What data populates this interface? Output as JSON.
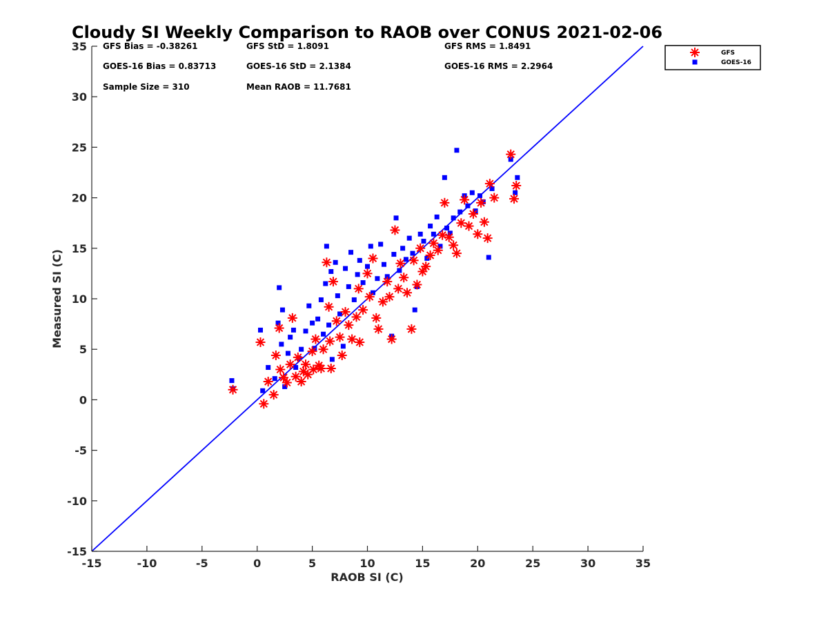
{
  "chart_data": {
    "type": "scatter",
    "title": "Cloudy SI Weekly Comparison to RAOB over CONUS 2021-02-06",
    "xlabel": "RAOB SI (C)",
    "ylabel": "Measured SI (C)",
    "xlim": [
      -15,
      35
    ],
    "ylim": [
      -15,
      35
    ],
    "xticks": [
      "-15",
      "-10",
      "-5",
      "0",
      "5",
      "10",
      "15",
      "20",
      "25",
      "30",
      "35"
    ],
    "yticks": [
      "-15",
      "-10",
      "-5",
      "0",
      "5",
      "10",
      "15",
      "20",
      "25",
      "30",
      "35"
    ],
    "grid": false,
    "legend_placement": "top-right, outside plot",
    "reference_line": {
      "x": [
        -15,
        35
      ],
      "y": [
        -15,
        35
      ],
      "color": "#0000ff"
    },
    "stats": [
      {
        "text": "GFS Bias = -0.38261",
        "row": 0,
        "col": 0
      },
      {
        "text": "GFS StD = 1.8091",
        "row": 0,
        "col": 1
      },
      {
        "text": "GFS RMS = 1.8491",
        "row": 0,
        "col": 2
      },
      {
        "text": "GOES-16 Bias = 0.83713",
        "row": 1,
        "col": 0
      },
      {
        "text": "GOES-16 StD = 2.1384",
        "row": 1,
        "col": 1
      },
      {
        "text": "GOES-16 RMS = 2.2964",
        "row": 1,
        "col": 2
      },
      {
        "text": "Sample Size = 310",
        "row": 2,
        "col": 0
      },
      {
        "text": "Mean RAOB = 11.7681",
        "row": 2,
        "col": 1
      }
    ],
    "series": [
      {
        "name": "GFS",
        "marker": "asterisk",
        "color": "#ff0000",
        "points": [
          [
            -2.2,
            1.0
          ],
          [
            0.3,
            5.7
          ],
          [
            0.6,
            -0.4
          ],
          [
            1.0,
            1.8
          ],
          [
            1.5,
            0.5
          ],
          [
            1.7,
            4.4
          ],
          [
            2.0,
            7.1
          ],
          [
            2.1,
            3.0
          ],
          [
            2.4,
            2.2
          ],
          [
            2.7,
            1.7
          ],
          [
            3.0,
            3.5
          ],
          [
            3.2,
            8.1
          ],
          [
            3.5,
            2.3
          ],
          [
            3.7,
            4.2
          ],
          [
            4.0,
            1.8
          ],
          [
            4.2,
            2.8
          ],
          [
            4.4,
            3.5
          ],
          [
            4.6,
            2.5
          ],
          [
            5.0,
            4.8
          ],
          [
            5.1,
            3.0
          ],
          [
            5.3,
            6.0
          ],
          [
            5.6,
            3.4
          ],
          [
            5.8,
            3.1
          ],
          [
            6.0,
            5.0
          ],
          [
            6.3,
            13.6
          ],
          [
            6.5,
            9.2
          ],
          [
            6.6,
            5.8
          ],
          [
            6.7,
            3.1
          ],
          [
            6.9,
            11.7
          ],
          [
            7.2,
            7.8
          ],
          [
            7.5,
            6.2
          ],
          [
            7.7,
            4.4
          ],
          [
            8.0,
            8.7
          ],
          [
            8.3,
            7.4
          ],
          [
            8.6,
            6.0
          ],
          [
            9.0,
            8.2
          ],
          [
            9.2,
            11.0
          ],
          [
            9.3,
            5.7
          ],
          [
            9.6,
            8.9
          ],
          [
            10.0,
            12.5
          ],
          [
            10.2,
            10.2
          ],
          [
            10.5,
            14.0
          ],
          [
            10.8,
            8.1
          ],
          [
            11.0,
            7.0
          ],
          [
            11.4,
            9.7
          ],
          [
            11.8,
            11.7
          ],
          [
            12.0,
            10.2
          ],
          [
            12.2,
            6.0
          ],
          [
            12.5,
            16.8
          ],
          [
            12.8,
            11.0
          ],
          [
            13.0,
            13.5
          ],
          [
            13.3,
            12.1
          ],
          [
            13.6,
            10.6
          ],
          [
            14.0,
            7.0
          ],
          [
            14.2,
            13.8
          ],
          [
            14.5,
            11.4
          ],
          [
            14.8,
            15.0
          ],
          [
            15.0,
            12.7
          ],
          [
            15.3,
            13.2
          ],
          [
            15.7,
            14.3
          ],
          [
            16.0,
            15.5
          ],
          [
            16.4,
            14.8
          ],
          [
            16.8,
            16.3
          ],
          [
            17.0,
            19.5
          ],
          [
            17.4,
            16.1
          ],
          [
            17.8,
            15.3
          ],
          [
            18.1,
            14.5
          ],
          [
            18.5,
            17.5
          ],
          [
            18.8,
            19.8
          ],
          [
            19.2,
            17.2
          ],
          [
            19.6,
            18.4
          ],
          [
            20.0,
            16.4
          ],
          [
            20.3,
            19.5
          ],
          [
            20.6,
            17.6
          ],
          [
            20.9,
            16.0
          ],
          [
            21.1,
            21.4
          ],
          [
            21.5,
            20.0
          ],
          [
            23.0,
            24.3
          ],
          [
            23.3,
            19.9
          ],
          [
            23.5,
            21.2
          ]
        ]
      },
      {
        "name": "GOES-16",
        "marker": "square",
        "color": "#0000ff",
        "points": [
          [
            -2.3,
            1.9
          ],
          [
            -2.2,
            1.1
          ],
          [
            0.3,
            6.9
          ],
          [
            0.5,
            0.9
          ],
          [
            1.0,
            3.2
          ],
          [
            1.6,
            2.1
          ],
          [
            1.9,
            7.6
          ],
          [
            2.0,
            11.1
          ],
          [
            2.2,
            5.5
          ],
          [
            2.3,
            8.9
          ],
          [
            2.5,
            1.3
          ],
          [
            2.8,
            4.6
          ],
          [
            3.0,
            6.2
          ],
          [
            3.3,
            6.9
          ],
          [
            3.5,
            3.2
          ],
          [
            3.8,
            4.1
          ],
          [
            4.0,
            5.0
          ],
          [
            4.4,
            6.8
          ],
          [
            4.7,
            9.3
          ],
          [
            5.0,
            7.6
          ],
          [
            5.2,
            5.1
          ],
          [
            5.5,
            8.0
          ],
          [
            5.8,
            9.9
          ],
          [
            6.0,
            6.5
          ],
          [
            6.2,
            11.5
          ],
          [
            6.3,
            15.2
          ],
          [
            6.5,
            7.4
          ],
          [
            6.7,
            12.7
          ],
          [
            6.8,
            4.0
          ],
          [
            7.1,
            13.6
          ],
          [
            7.3,
            10.3
          ],
          [
            7.5,
            8.5
          ],
          [
            7.8,
            5.3
          ],
          [
            8.0,
            13.0
          ],
          [
            8.3,
            11.2
          ],
          [
            8.5,
            14.6
          ],
          [
            8.8,
            9.9
          ],
          [
            9.1,
            12.4
          ],
          [
            9.3,
            13.8
          ],
          [
            9.6,
            11.6
          ],
          [
            10.0,
            13.2
          ],
          [
            10.3,
            15.2
          ],
          [
            10.5,
            10.6
          ],
          [
            10.9,
            12.0
          ],
          [
            11.2,
            15.4
          ],
          [
            11.5,
            13.4
          ],
          [
            11.8,
            12.2
          ],
          [
            12.2,
            6.3
          ],
          [
            12.4,
            14.4
          ],
          [
            12.6,
            18.0
          ],
          [
            12.9,
            12.8
          ],
          [
            13.2,
            15.0
          ],
          [
            13.5,
            13.9
          ],
          [
            13.8,
            16.0
          ],
          [
            14.1,
            14.5
          ],
          [
            14.3,
            8.9
          ],
          [
            14.5,
            11.2
          ],
          [
            14.8,
            16.4
          ],
          [
            15.1,
            15.7
          ],
          [
            15.4,
            14.0
          ],
          [
            15.7,
            17.2
          ],
          [
            16.0,
            16.4
          ],
          [
            16.3,
            18.1
          ],
          [
            16.6,
            15.2
          ],
          [
            17.0,
            22.0
          ],
          [
            17.2,
            17.0
          ],
          [
            17.5,
            16.5
          ],
          [
            17.8,
            18.0
          ],
          [
            18.1,
            24.7
          ],
          [
            18.4,
            18.6
          ],
          [
            18.8,
            20.2
          ],
          [
            19.1,
            19.2
          ],
          [
            19.5,
            20.5
          ],
          [
            19.8,
            18.7
          ],
          [
            20.2,
            20.2
          ],
          [
            20.5,
            19.6
          ],
          [
            21.0,
            14.1
          ],
          [
            21.3,
            20.9
          ],
          [
            23.0,
            23.8
          ],
          [
            23.4,
            20.5
          ],
          [
            23.6,
            22.0
          ]
        ]
      }
    ]
  }
}
